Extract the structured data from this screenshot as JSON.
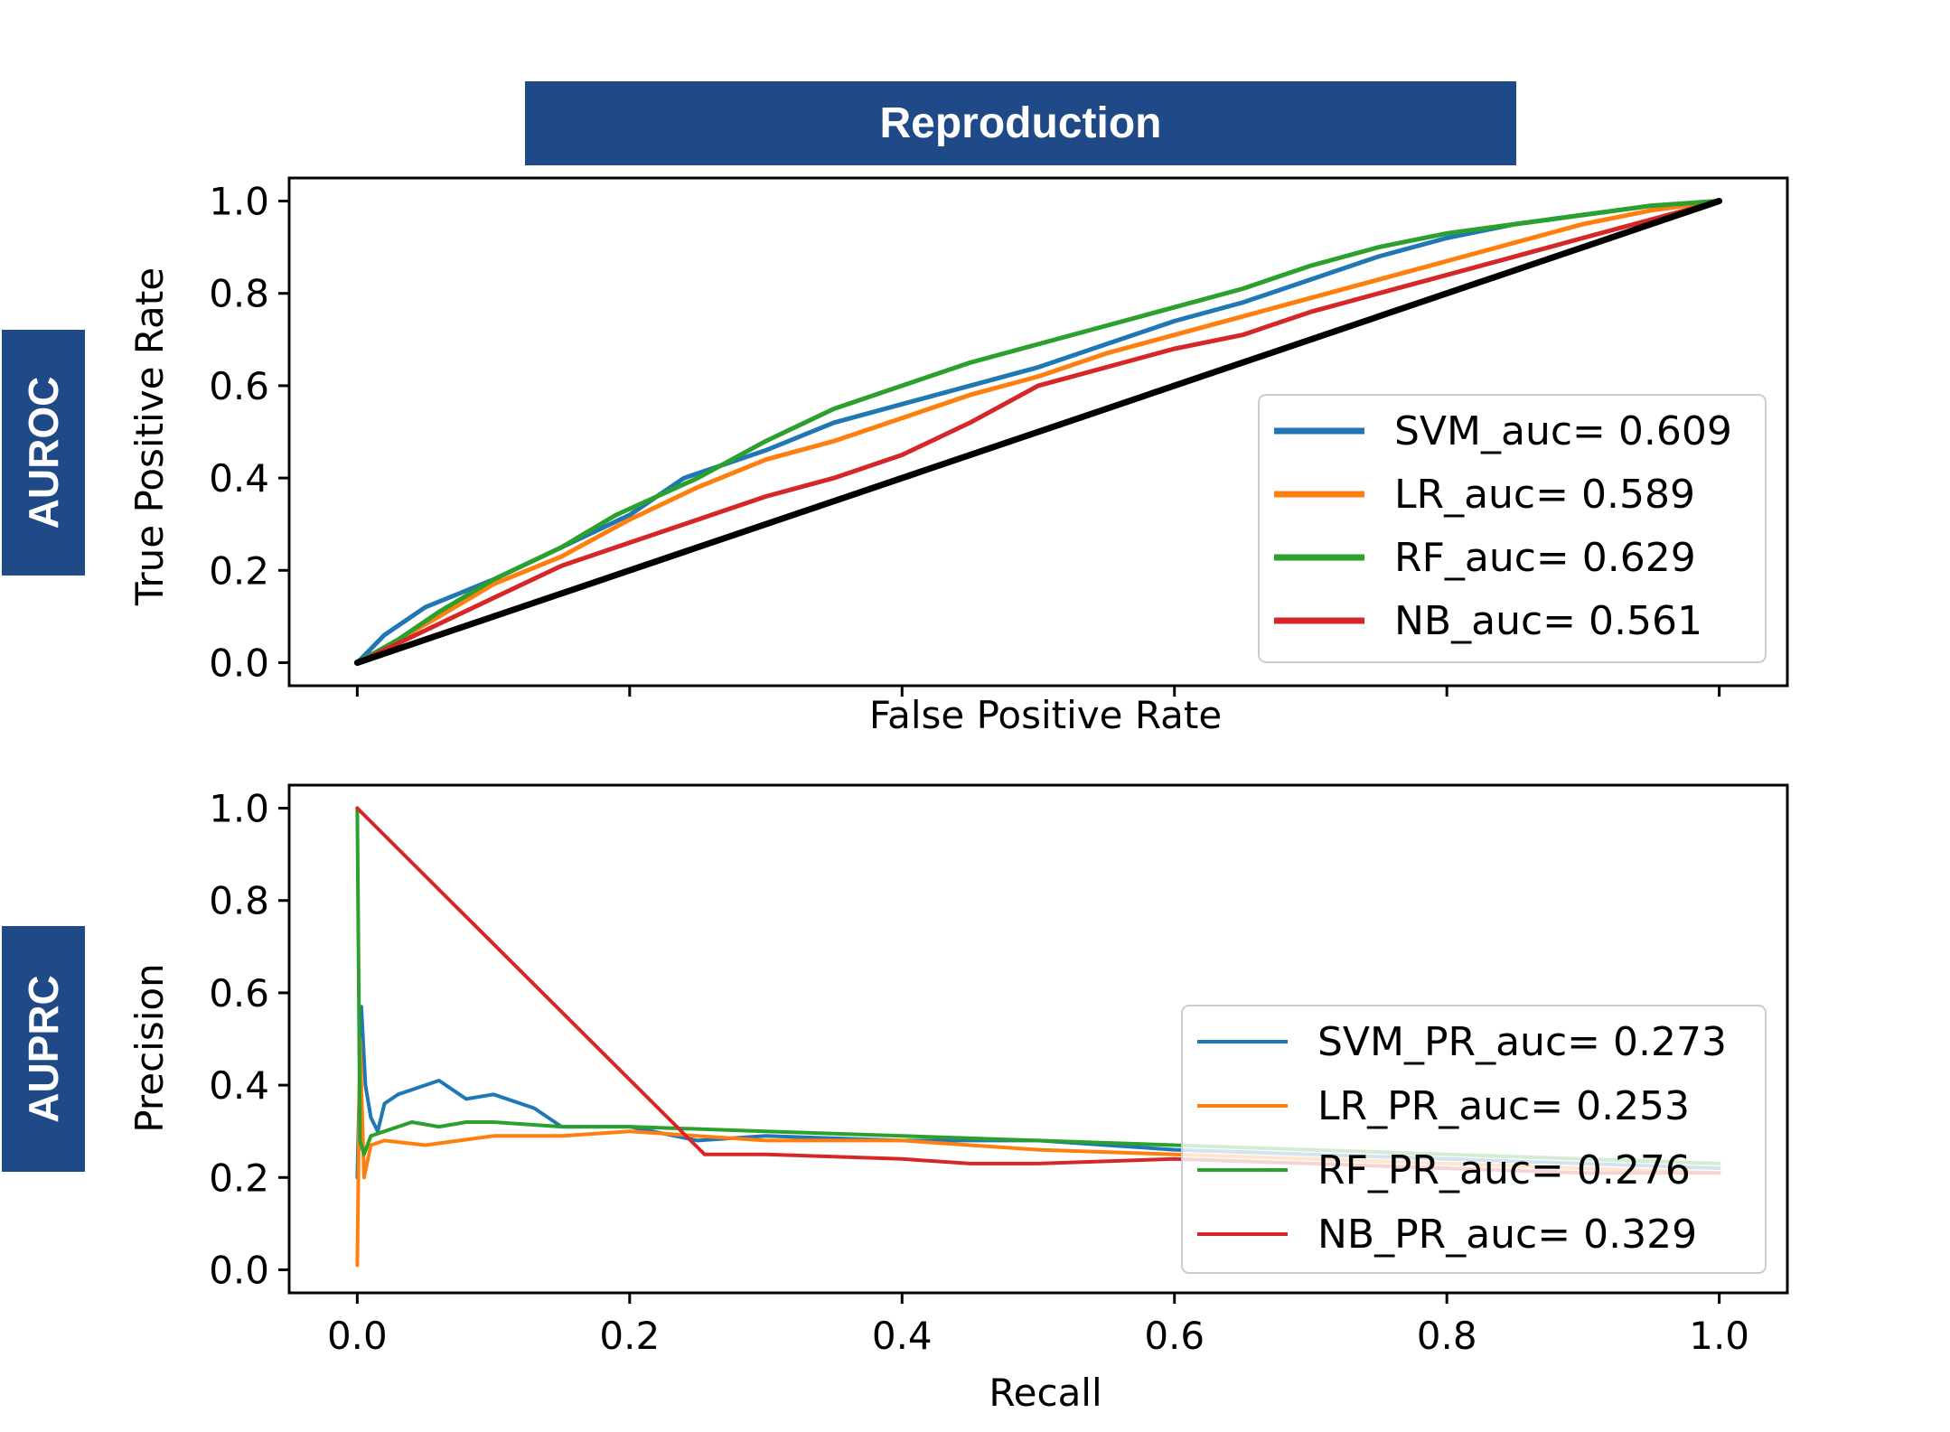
{
  "banner": {
    "title": "Reproduction"
  },
  "side_tags": {
    "top": "AUROC",
    "bottom": "AUPRC"
  },
  "colors": {
    "banner_bg": "#1f4a87",
    "SVM": "#1f77b4",
    "LR": "#ff7f0e",
    "RF": "#2ca02c",
    "NB": "#d62728",
    "chance": "#000000"
  },
  "chart_data": [
    {
      "type": "line",
      "name": "roc",
      "xlabel": "False Positive Rate",
      "ylabel": "True Positive Rate",
      "xlim": [
        -0.05,
        1.05
      ],
      "ylim": [
        -0.05,
        1.05
      ],
      "xticks": [
        0.0,
        0.2,
        0.4,
        0.6,
        0.8,
        1.0
      ],
      "xtick_labels_shown": false,
      "yticks": [
        "0.0",
        "0.2",
        "0.4",
        "0.6",
        "0.8",
        "1.0"
      ],
      "legend_position": "lower-right",
      "grid": false,
      "series": [
        {
          "name": "SVM_auc= 0.609",
          "color": "#1f77b4",
          "x": [
            0,
            0.02,
            0.05,
            0.1,
            0.15,
            0.2,
            0.24,
            0.3,
            0.35,
            0.4,
            0.45,
            0.5,
            0.55,
            0.6,
            0.65,
            0.7,
            0.75,
            0.8,
            0.85,
            0.9,
            0.95,
            1.0
          ],
          "y": [
            0,
            0.06,
            0.12,
            0.18,
            0.25,
            0.32,
            0.4,
            0.46,
            0.52,
            0.56,
            0.6,
            0.64,
            0.69,
            0.74,
            0.78,
            0.83,
            0.88,
            0.92,
            0.95,
            0.97,
            0.99,
            1.0
          ]
        },
        {
          "name": "LR_auc= 0.589",
          "color": "#ff7f0e",
          "x": [
            0,
            0.03,
            0.06,
            0.1,
            0.15,
            0.2,
            0.25,
            0.3,
            0.35,
            0.4,
            0.45,
            0.5,
            0.55,
            0.6,
            0.65,
            0.7,
            0.75,
            0.8,
            0.85,
            0.9,
            0.95,
            1.0
          ],
          "y": [
            0,
            0.05,
            0.1,
            0.17,
            0.23,
            0.31,
            0.38,
            0.44,
            0.48,
            0.53,
            0.58,
            0.62,
            0.67,
            0.71,
            0.75,
            0.79,
            0.83,
            0.87,
            0.91,
            0.95,
            0.98,
            1.0
          ]
        },
        {
          "name": "RF_auc= 0.629",
          "color": "#2ca02c",
          "x": [
            0,
            0.03,
            0.06,
            0.1,
            0.15,
            0.19,
            0.25,
            0.3,
            0.35,
            0.4,
            0.45,
            0.5,
            0.55,
            0.6,
            0.65,
            0.7,
            0.75,
            0.8,
            0.85,
            0.9,
            0.95,
            1.0
          ],
          "y": [
            0,
            0.05,
            0.11,
            0.18,
            0.25,
            0.32,
            0.4,
            0.48,
            0.55,
            0.6,
            0.65,
            0.69,
            0.73,
            0.77,
            0.81,
            0.86,
            0.9,
            0.93,
            0.95,
            0.97,
            0.99,
            1.0
          ]
        },
        {
          "name": "NB_auc= 0.561",
          "color": "#d62728",
          "x": [
            0,
            0.05,
            0.1,
            0.15,
            0.2,
            0.25,
            0.3,
            0.35,
            0.4,
            0.45,
            0.5,
            0.55,
            0.6,
            0.65,
            0.7,
            0.75,
            0.8,
            0.85,
            0.9,
            0.95,
            1.0
          ],
          "y": [
            0,
            0.07,
            0.14,
            0.21,
            0.26,
            0.31,
            0.36,
            0.4,
            0.45,
            0.52,
            0.6,
            0.64,
            0.68,
            0.71,
            0.76,
            0.8,
            0.84,
            0.88,
            0.92,
            0.96,
            1.0
          ]
        },
        {
          "name": "",
          "color": "#000000",
          "x": [
            0,
            1.0
          ],
          "y": [
            0,
            1.0
          ]
        }
      ]
    },
    {
      "type": "line",
      "name": "pr",
      "xlabel": "Recall",
      "ylabel": "Precision",
      "xlim": [
        -0.05,
        1.05
      ],
      "ylim": [
        -0.05,
        1.05
      ],
      "xticks": [
        "0.0",
        "0.2",
        "0.4",
        "0.6",
        "0.8",
        "1.0"
      ],
      "yticks": [
        "0.0",
        "0.2",
        "0.4",
        "0.6",
        "0.8",
        "1.0"
      ],
      "legend_position": "lower-right",
      "grid": false,
      "series": [
        {
          "name": "SVM_PR_auc= 0.273",
          "color": "#1f77b4",
          "x": [
            0,
            0.003,
            0.006,
            0.01,
            0.015,
            0.02,
            0.03,
            0.05,
            0.06,
            0.08,
            0.1,
            0.13,
            0.15,
            0.2,
            0.25,
            0.3,
            0.4,
            0.5,
            0.6,
            0.7,
            0.8,
            0.9,
            1.0
          ],
          "y": [
            0.2,
            0.57,
            0.4,
            0.33,
            0.3,
            0.36,
            0.38,
            0.4,
            0.41,
            0.37,
            0.38,
            0.35,
            0.31,
            0.31,
            0.28,
            0.29,
            0.28,
            0.28,
            0.26,
            0.25,
            0.24,
            0.23,
            0.22
          ]
        },
        {
          "name": "LR_PR_auc= 0.253",
          "color": "#ff7f0e",
          "x": [
            0,
            0.002,
            0.005,
            0.01,
            0.02,
            0.05,
            0.1,
            0.15,
            0.2,
            0.3,
            0.4,
            0.5,
            0.6,
            0.7,
            0.8,
            0.9,
            1.0
          ],
          "y": [
            0.01,
            0.5,
            0.2,
            0.27,
            0.28,
            0.27,
            0.29,
            0.29,
            0.3,
            0.28,
            0.28,
            0.26,
            0.25,
            0.24,
            0.23,
            0.22,
            0.21
          ]
        },
        {
          "name": "RF_PR_auc= 0.276",
          "color": "#2ca02c",
          "x": [
            0,
            0.002,
            0.005,
            0.01,
            0.02,
            0.04,
            0.06,
            0.08,
            0.1,
            0.15,
            0.2,
            0.3,
            0.4,
            0.5,
            0.6,
            0.7,
            0.8,
            0.9,
            1.0
          ],
          "y": [
            1.0,
            0.28,
            0.25,
            0.29,
            0.3,
            0.32,
            0.31,
            0.32,
            0.32,
            0.31,
            0.31,
            0.3,
            0.29,
            0.28,
            0.27,
            0.26,
            0.25,
            0.24,
            0.23
          ]
        },
        {
          "name": "NB_PR_auc= 0.329",
          "color": "#d62728",
          "x": [
            0,
            0.255,
            0.3,
            0.4,
            0.45,
            0.5,
            0.6,
            0.7,
            0.8,
            0.9,
            1.0
          ],
          "y": [
            1.0,
            0.25,
            0.25,
            0.24,
            0.23,
            0.23,
            0.24,
            0.23,
            0.22,
            0.21,
            0.21
          ]
        }
      ]
    }
  ]
}
